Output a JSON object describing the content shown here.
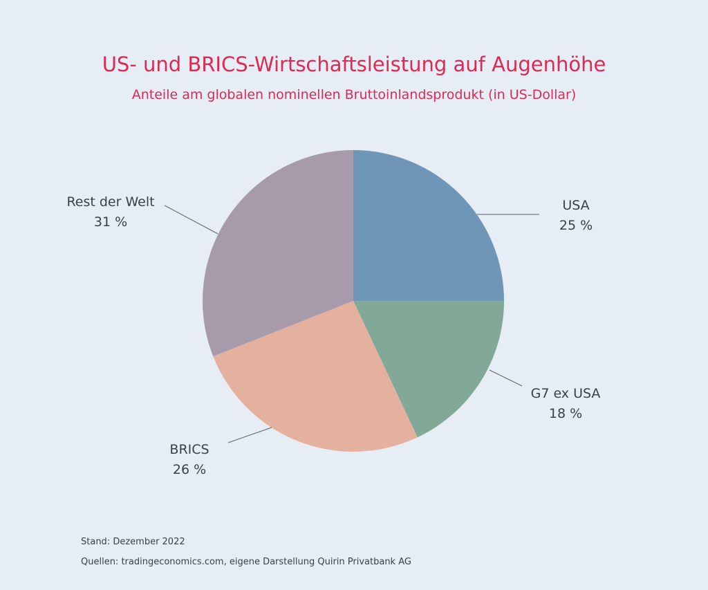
{
  "chart_data": {
    "type": "pie",
    "title": "US- und BRICS-Wirtschaftsleistung auf Augenhöhe",
    "subtitle": "Anteile am globalen nominellen Bruttoinlandsprodukt (in US-Dollar)",
    "unit": "%",
    "slices": [
      {
        "name": "USA",
        "value": 25,
        "label": "25 %",
        "color": "#7096b7"
      },
      {
        "name": "G7 ex USA",
        "value": 18,
        "label": "18 %",
        "color": "#82a897"
      },
      {
        "name": "BRICS",
        "value": 26,
        "label": "26 %",
        "color": "#e4b19f"
      },
      {
        "name": "Rest der Welt",
        "value": 31,
        "label": "31 %",
        "color": "#a69aab"
      }
    ],
    "start_angle": "12 o'clock",
    "direction": "clockwise"
  },
  "footer": {
    "stand": "Stand: Dezember 2022",
    "sources": "Quellen: tradingeconomics.com, eigene Darstellung Quirin Privatbank AG"
  }
}
